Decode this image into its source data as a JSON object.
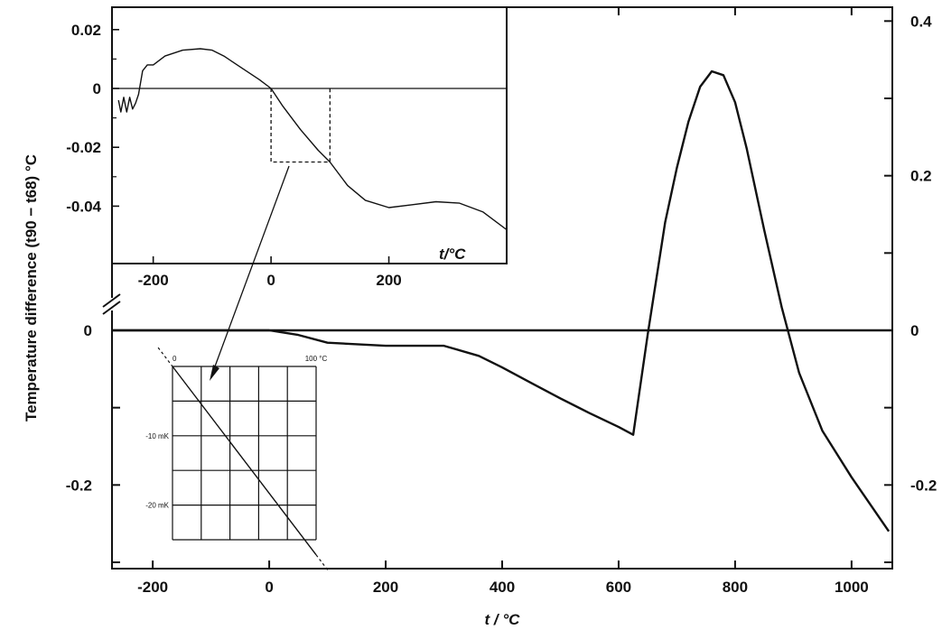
{
  "chart_data": [
    {
      "type": "line",
      "title": "",
      "xlabel": "t / °C",
      "ylabel": "Temperature difference (t90 − t68) °C",
      "xlim": [
        -270,
        1070
      ],
      "ylim": [
        -0.37,
        0
      ],
      "xticks": [
        -200,
        0,
        200,
        400,
        600,
        800,
        1000
      ],
      "yticks_left": [
        0,
        -0.2
      ],
      "right_axis": {
        "ylim": [
          -0.37,
          0.5
        ],
        "yticks": [
          0.4,
          0.2,
          0,
          -0.2
        ]
      },
      "series": [
        {
          "x": [
            -270,
            0,
            50,
            100,
            200,
            300,
            360,
            400,
            450,
            500,
            550,
            600,
            625,
            650,
            680,
            700,
            720,
            740,
            760,
            780,
            800,
            820,
            850,
            880,
            910,
            950,
            1000,
            1064
          ],
          "y": [
            0.0,
            0.0,
            -0.006,
            -0.016,
            -0.02,
            -0.02,
            -0.033,
            -0.048,
            -0.068,
            -0.088,
            -0.107,
            -0.125,
            -0.135,
            -0.005,
            0.14,
            0.21,
            0.27,
            0.315,
            0.335,
            0.33,
            0.295,
            0.235,
            0.13,
            0.03,
            -0.055,
            -0.13,
            -0.19,
            -0.26
          ]
        }
      ]
    },
    {
      "type": "line",
      "title": "",
      "xlabel": "t/°C",
      "xlim": [
        -270,
        400
      ],
      "ylim": [
        -0.048,
        0.025
      ],
      "xticks": [
        -200,
        0,
        200
      ],
      "yticks": [
        0.02,
        0,
        -0.02,
        -0.04
      ],
      "series": [
        {
          "x": [
            -259,
            -255,
            -250,
            -245,
            -240,
            -235,
            -230,
            -225,
            -218,
            -210,
            -200,
            -180,
            -150,
            -120,
            -100,
            -80,
            -50,
            -20,
            0,
            20,
            50,
            80,
            100,
            130,
            160,
            200,
            240,
            280,
            320,
            360,
            400
          ],
          "y": [
            -0.004,
            -0.008,
            -0.003,
            -0.008,
            -0.003,
            -0.007,
            -0.005,
            -0.002,
            0.006,
            0.008,
            0.008,
            0.011,
            0.013,
            0.0135,
            0.013,
            0.011,
            0.007,
            0.003,
            0.0,
            -0.006,
            -0.014,
            -0.021,
            -0.025,
            -0.033,
            -0.038,
            -0.0405,
            -0.0395,
            -0.0385,
            -0.039,
            -0.042,
            -0.048
          ]
        }
      ]
    },
    {
      "type": "line",
      "title": "",
      "labels": [
        "0",
        "100 °C",
        "-10 mK",
        "-20 mK"
      ],
      "xlim": [
        0,
        100
      ],
      "ylim": [
        -25,
        0
      ],
      "series": [
        {
          "x": [
            0,
            100
          ],
          "y": [
            0,
            -25
          ]
        }
      ]
    }
  ]
}
